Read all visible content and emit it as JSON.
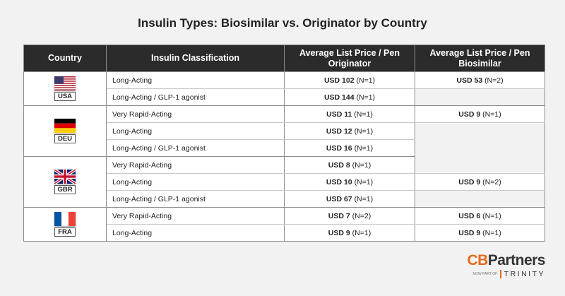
{
  "title": "Insulin Types: Biosimilar vs. Originator by Country",
  "headers": {
    "country": "Country",
    "classification": "Insulin Classification",
    "originator": "Average List Price / Pen Originator",
    "biosimilar": "Average List Price / Pen Biosimilar"
  },
  "countries": {
    "usa": "USA",
    "deu": "DEU",
    "gbr": "GBR",
    "fra": "FRA"
  },
  "rows": [
    {
      "cls": "Long-Acting",
      "orig_price": "USD 102",
      "orig_n": "(N=1)",
      "bio_price": "USD 53",
      "bio_n": "(N=2)"
    },
    {
      "cls": "Long-Acting / GLP-1 agonist",
      "orig_price": "USD 144",
      "orig_n": "(N=1)"
    },
    {
      "cls": "Very Rapid-Acting",
      "orig_price": "USD 11",
      "orig_n": "(N=1)",
      "bio_price": "USD 9",
      "bio_n": "(N=1)"
    },
    {
      "cls": "Long-Acting",
      "orig_price": "USD 12",
      "orig_n": "(N=1)"
    },
    {
      "cls": "Long-Acting / GLP-1 agonist",
      "orig_price": "USD 16",
      "orig_n": "(N=1)"
    },
    {
      "cls": "Very Rapid-Acting",
      "orig_price": "USD 8",
      "orig_n": "(N=1)"
    },
    {
      "cls": "Long-Acting",
      "orig_price": "USD 10",
      "orig_n": "(N=1)",
      "bio_price": "USD 9",
      "bio_n": "(N=2)"
    },
    {
      "cls": "Long-Acting / GLP-1 agonist",
      "orig_price": "USD 67",
      "orig_n": "(N=1)"
    },
    {
      "cls": "Very Rapid-Acting",
      "orig_price": "USD 7",
      "orig_n": "(N=2)",
      "bio_price": "USD 6",
      "bio_n": "(N=1)"
    },
    {
      "cls": "Long-Acting",
      "orig_price": "USD 9",
      "orig_n": "(N=1)",
      "bio_price": "USD 9",
      "bio_n": "(N=1)"
    }
  ],
  "logo": {
    "cb": "CB",
    "partners": "Partners",
    "tagline": "NOW PART OF",
    "trinity": "TRINITY"
  },
  "colors": {
    "header_bg": "#2b2b2b",
    "empty_cell": "#f2f2f2",
    "brand_orange": "#e56a1c"
  }
}
